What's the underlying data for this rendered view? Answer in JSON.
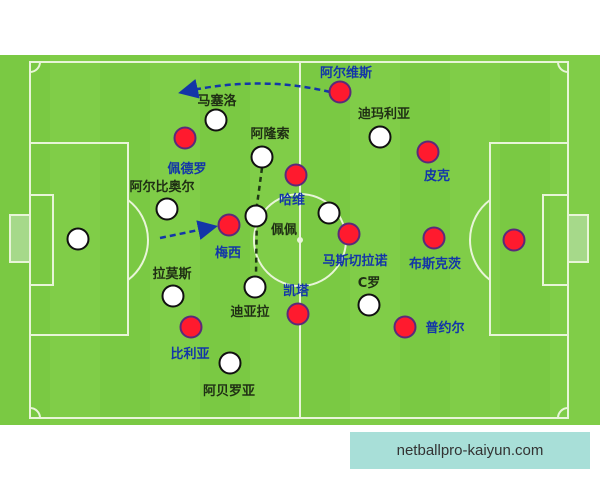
{
  "colors": {
    "pitch": "#7ac943",
    "pitch_stripe": "#86d24d",
    "line": "#e8f5d8",
    "team_a": "#ffffff",
    "team_b": "#ff1a2e",
    "team_b_border": "#5a2a7a",
    "label_a": "#1f2f14",
    "label_b": "#1336a8",
    "arrow": "#1336a8"
  },
  "players": [
    {
      "name": "马塞洛",
      "team": "white"
    },
    {
      "name": "阿隆索",
      "team": "white"
    },
    {
      "name": "阿尔比奥尔",
      "team": "white"
    },
    {
      "name": "",
      "team": "white"
    },
    {
      "name": "佩佩",
      "team": "white"
    },
    {
      "name": "迪玛利亚",
      "team": "white"
    },
    {
      "name": "",
      "team": "white"
    },
    {
      "name": "拉莫斯",
      "team": "white"
    },
    {
      "name": "迪亚拉",
      "team": "white"
    },
    {
      "name": "C罗",
      "team": "white"
    },
    {
      "name": "阿贝罗亚",
      "team": "white"
    },
    {
      "name": "阿尔维斯",
      "team": "red"
    },
    {
      "name": "佩德罗",
      "team": "red"
    },
    {
      "name": "哈维",
      "team": "red"
    },
    {
      "name": "梅西",
      "team": "red"
    },
    {
      "name": "皮克",
      "team": "red"
    },
    {
      "name": "马斯切拉诺",
      "team": "red"
    },
    {
      "name": "布斯克茨",
      "team": "red"
    },
    {
      "name": "",
      "team": "red"
    },
    {
      "name": "凯塔",
      "team": "red"
    },
    {
      "name": "比利亚",
      "team": "red"
    },
    {
      "name": "普约尔",
      "team": "red"
    }
  ],
  "watermark": "netballpro-kaiyun.com"
}
